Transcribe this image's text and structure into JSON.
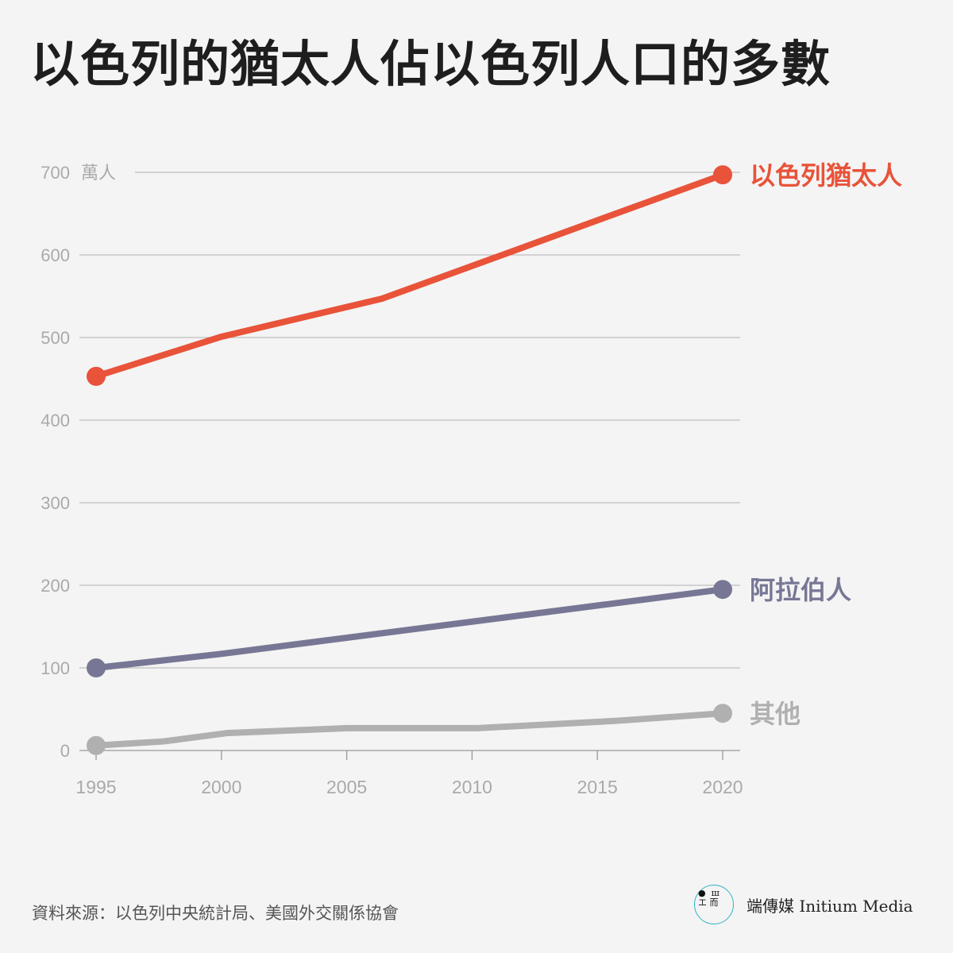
{
  "title": "以色列的猶太人佔以色列人口的多數",
  "source": "資料來源：以色列中央統計局、美國外交關係協會",
  "logo": {
    "mark": "●  ш\nエ 而",
    "text": "端傳媒 Initium Media"
  },
  "chart_data": {
    "type": "line",
    "title": "以色列的猶太人佔以色列人口的多數",
    "xlabel": "",
    "ylabel": "萬人",
    "xlim": [
      1995,
      2020
    ],
    "ylim": [
      0,
      700
    ],
    "x_ticks": [
      "1995",
      "2000",
      "2005",
      "2010",
      "2015",
      "2020"
    ],
    "y_ticks": [
      "0",
      "100",
      "200",
      "300",
      "400",
      "500",
      "600",
      "700"
    ],
    "y_unit_label": "萬人",
    "grid": true,
    "legend": "direct labels at right end of lines",
    "series": [
      {
        "name": "以色列猶太人",
        "color": "#e8533a",
        "x": [
          1995,
          2000,
          2006.4,
          2020
        ],
        "values": [
          453,
          501,
          547,
          697
        ]
      },
      {
        "name": "阿拉伯人",
        "color": "#777795",
        "x": [
          1995,
          2000,
          2020
        ],
        "values": [
          100,
          117,
          195
        ]
      },
      {
        "name": "其他",
        "color": "#b0b0b0",
        "x": [
          1995,
          1997.7,
          2000.2,
          2005,
          2010.2,
          2015.8,
          2020
        ],
        "values": [
          6,
          11,
          21,
          27,
          27,
          36,
          45
        ]
      }
    ]
  }
}
